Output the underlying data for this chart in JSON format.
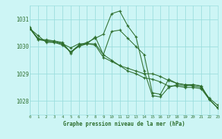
{
  "title": "Graphe pression niveau de la mer (hPa)",
  "bg_color": "#cdf5f5",
  "grid_color": "#99dddd",
  "line_color": "#2d6e2d",
  "xlim": [
    0,
    23
  ],
  "ylim": [
    1027.5,
    1031.5
  ],
  "yticks": [
    1028,
    1029,
    1030,
    1031
  ],
  "xticks": [
    0,
    1,
    2,
    3,
    4,
    5,
    6,
    7,
    8,
    9,
    10,
    11,
    12,
    13,
    14,
    15,
    16,
    17,
    18,
    19,
    20,
    21,
    22,
    23
  ],
  "series": [
    {
      "x": [
        0,
        1,
        2,
        3,
        4,
        5,
        6,
        7,
        8,
        9,
        10,
        11,
        12,
        13,
        14,
        15,
        16,
        17,
        18,
        19,
        20,
        21,
        22,
        23
      ],
      "y": [
        1030.65,
        1030.4,
        1030.15,
        1030.15,
        1030.1,
        1029.95,
        1030.1,
        1030.1,
        1030.1,
        1029.7,
        1029.5,
        1029.3,
        1029.2,
        1029.1,
        1029.0,
        1029.0,
        1028.9,
        1028.75,
        1028.65,
        1028.6,
        1028.55,
        1028.5,
        1028.1,
        1027.85
      ]
    },
    {
      "x": [
        0,
        1,
        2,
        3,
        4,
        5,
        6,
        7,
        8,
        9,
        10,
        11,
        12,
        13,
        14,
        15,
        16,
        17,
        18,
        19,
        20,
        21,
        22,
        23
      ],
      "y": [
        1030.65,
        1030.3,
        1030.2,
        1030.15,
        1030.05,
        1029.8,
        1030.0,
        1030.1,
        1030.05,
        1029.6,
        1029.45,
        1029.3,
        1029.1,
        1029.0,
        1028.85,
        1028.8,
        1028.7,
        1028.55,
        1028.55,
        1028.5,
        1028.5,
        1028.45,
        1028.05,
        1027.75
      ]
    },
    {
      "x": [
        0,
        1,
        2,
        3,
        4,
        5,
        6,
        7,
        8,
        9,
        10,
        11,
        12,
        13,
        14,
        15,
        16,
        17,
        18,
        19,
        20,
        21,
        22,
        23
      ],
      "y": [
        1030.65,
        1030.25,
        1030.2,
        1030.2,
        1030.1,
        1029.8,
        1030.05,
        1030.15,
        1030.3,
        1030.45,
        1031.2,
        1031.3,
        1030.75,
        1030.35,
        1029.1,
        1028.2,
        1028.15,
        1028.5,
        1028.6,
        1028.55,
        1028.6,
        1028.55,
        1028.05,
        1027.75
      ]
    },
    {
      "x": [
        0,
        1,
        2,
        3,
        4,
        5,
        6,
        7,
        8,
        9,
        10,
        11,
        12,
        13,
        14,
        15,
        16,
        17,
        18,
        19,
        20,
        21,
        22,
        23
      ],
      "y": [
        1030.7,
        1030.25,
        1030.25,
        1030.2,
        1030.15,
        1029.75,
        1030.05,
        1030.1,
        1030.35,
        1029.7,
        1030.55,
        1030.6,
        1030.3,
        1030.0,
        1029.7,
        1028.3,
        1028.25,
        1028.8,
        1028.65,
        1028.6,
        1028.6,
        1028.55,
        1028.05,
        1027.75
      ]
    }
  ]
}
